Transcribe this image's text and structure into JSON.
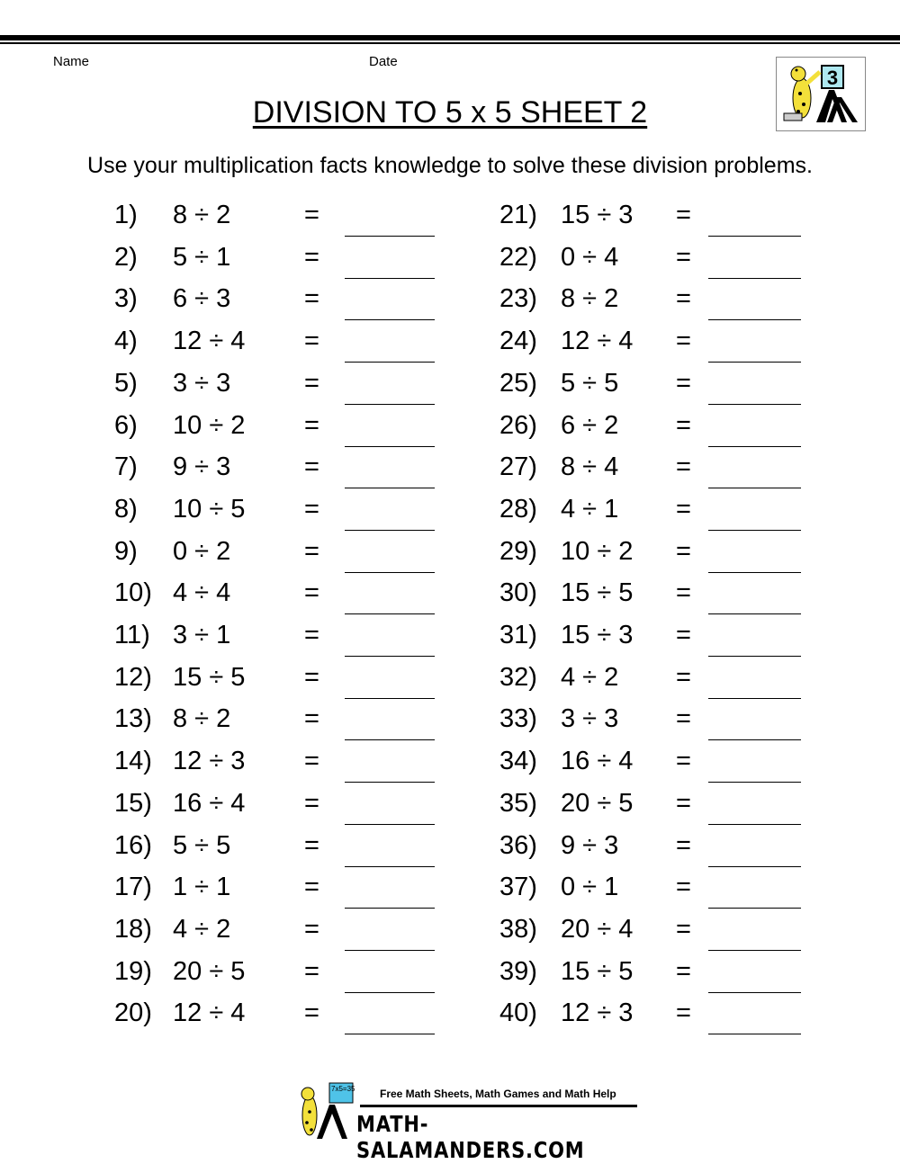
{
  "header": {
    "name_label": "Name",
    "date_label": "Date"
  },
  "title": "DIVISION TO 5 x 5 SHEET 2",
  "instructions": "Use your multiplication facts knowledge to solve these division problems.",
  "logo": {
    "badge": "3",
    "icon": "salamander-logo-icon"
  },
  "equals": "=",
  "problems": [
    {
      "n": "1)",
      "p": "8 ÷ 2"
    },
    {
      "n": "2)",
      "p": "5 ÷ 1"
    },
    {
      "n": "3)",
      "p": "6 ÷ 3"
    },
    {
      "n": "4)",
      "p": "12 ÷ 4"
    },
    {
      "n": "5)",
      "p": "3 ÷ 3"
    },
    {
      "n": "6)",
      "p": "10 ÷ 2"
    },
    {
      "n": "7)",
      "p": "9 ÷ 3"
    },
    {
      "n": "8)",
      "p": "10 ÷ 5"
    },
    {
      "n": "9)",
      "p": "0 ÷ 2"
    },
    {
      "n": "10)",
      "p": "4 ÷ 4"
    },
    {
      "n": "11)",
      "p": "3 ÷ 1"
    },
    {
      "n": "12)",
      "p": "15 ÷ 5"
    },
    {
      "n": "13)",
      "p": "8 ÷ 2"
    },
    {
      "n": "14)",
      "p": "12 ÷ 3"
    },
    {
      "n": "15)",
      "p": "16 ÷ 4"
    },
    {
      "n": "16)",
      "p": "5 ÷ 5"
    },
    {
      "n": "17)",
      "p": "1 ÷ 1"
    },
    {
      "n": "18)",
      "p": "4 ÷ 2"
    },
    {
      "n": "19)",
      "p": "20 ÷ 5"
    },
    {
      "n": "20)",
      "p": "12 ÷ 4"
    },
    {
      "n": "21)",
      "p": "15 ÷ 3"
    },
    {
      "n": "22)",
      "p": "0 ÷ 4"
    },
    {
      "n": "23)",
      "p": "8 ÷ 2"
    },
    {
      "n": "24)",
      "p": "12 ÷ 4"
    },
    {
      "n": "25)",
      "p": "5 ÷ 5"
    },
    {
      "n": "26)",
      "p": "6 ÷ 2"
    },
    {
      "n": "27)",
      "p": "8 ÷ 4"
    },
    {
      "n": "28)",
      "p": "4 ÷ 1"
    },
    {
      "n": "29)",
      "p": "10 ÷ 2"
    },
    {
      "n": "30)",
      "p": "15 ÷ 5"
    },
    {
      "n": "31)",
      "p": "15 ÷ 3"
    },
    {
      "n": "32)",
      "p": "4 ÷ 2"
    },
    {
      "n": "33)",
      "p": "3 ÷ 3"
    },
    {
      "n": "34)",
      "p": "16 ÷ 4"
    },
    {
      "n": "35)",
      "p": "20 ÷ 5"
    },
    {
      "n": "36)",
      "p": "9 ÷ 3"
    },
    {
      "n": "37)",
      "p": "0 ÷ 1"
    },
    {
      "n": "38)",
      "p": "20 ÷ 4"
    },
    {
      "n": "39)",
      "p": "15 ÷ 5"
    },
    {
      "n": "40)",
      "p": "12 ÷ 3"
    }
  ],
  "footer": {
    "tagline": "Free Math Sheets, Math Games and Math Help",
    "site": "MATH-SALAMANDERS.COM",
    "badge": "7x5=35"
  },
  "colors": {
    "badge_fill": "#aee8f0",
    "salamander": "#f3e03a"
  }
}
